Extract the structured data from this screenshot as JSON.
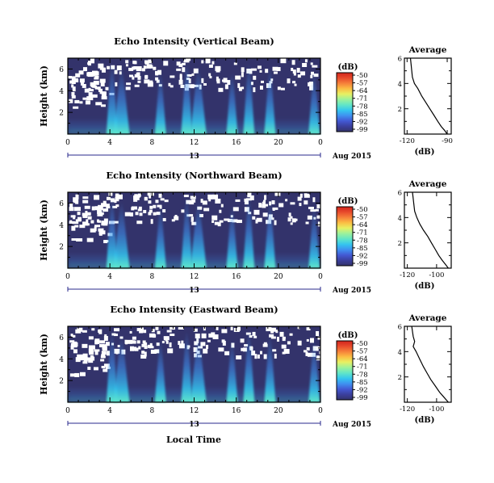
{
  "colors": {
    "background_fill": "#33336b",
    "missing": "#ffffff",
    "colormap": [
      "#33336b",
      "#3b3f9c",
      "#4359d3",
      "#3f8ff0",
      "#34c5ef",
      "#5fe5c9",
      "#9ff29a",
      "#e8f062",
      "#fbbd43",
      "#f6803a",
      "#e84a2c",
      "#d1241c"
    ]
  },
  "shared": {
    "ylabel": "Height (km)",
    "day_label": "13",
    "date_label": "Aug 2015",
    "xlabel": "Local Time",
    "xticks": [
      "0",
      "4",
      "8",
      "12",
      "16",
      "20",
      "0"
    ],
    "yticks": [
      "6",
      "4",
      "2"
    ],
    "colorbar_unit": "(dB)",
    "colorbar_ticks": [
      "-50",
      "-57",
      "-64",
      "-71",
      "-78",
      "-85",
      "-92",
      "-99"
    ],
    "avg_title": "Average",
    "avg_xlabel": "(dB)",
    "avg_yticks": [
      "6",
      "4",
      "2"
    ]
  },
  "chart_data": [
    {
      "type": "heatmap",
      "title": "Echo Intensity (Vertical Beam)",
      "xlabel": "Local Time",
      "ylabel": "Height (km)",
      "xlim": [
        0,
        24
      ],
      "ylim": [
        0,
        7
      ],
      "zlim": [
        -99,
        -50
      ],
      "colorbar_ticks": [
        -50,
        -57,
        -64,
        -71,
        -78,
        -85,
        -92,
        -99
      ],
      "plume_hours": [
        4.2,
        5.1,
        8.8,
        11.3,
        12.4,
        15.6,
        17.2,
        19.2,
        23.4
      ]
    },
    {
      "type": "heatmap",
      "title": "Echo Intensity (Northward Beam)",
      "xlabel": "Local Time",
      "ylabel": "Height (km)",
      "xlim": [
        0,
        24
      ],
      "ylim": [
        0,
        7
      ],
      "zlim": [
        -99,
        -50
      ],
      "colorbar_ticks": [
        -50,
        -57,
        -64,
        -71,
        -78,
        -85,
        -92,
        -99
      ],
      "plume_hours": [
        4.2,
        5.1,
        8.8,
        11.3,
        12.4,
        15.6,
        17.2,
        19.2,
        23.4
      ]
    },
    {
      "type": "heatmap",
      "title": "Echo Intensity (Eastward Beam)",
      "xlabel": "Local Time",
      "ylabel": "Height (km)",
      "xlim": [
        0,
        24
      ],
      "ylim": [
        0,
        7
      ],
      "zlim": [
        -99,
        -50
      ],
      "colorbar_ticks": [
        -50,
        -57,
        -64,
        -71,
        -78,
        -85,
        -92,
        -99
      ],
      "plume_hours": [
        4.2,
        5.1,
        8.8,
        11.3,
        12.4,
        15.6,
        17.2,
        19.2,
        23.4
      ]
    },
    {
      "type": "line",
      "title": "Average",
      "xlabel": "(dB)",
      "xlim": [
        -122,
        -87
      ],
      "ylim": [
        0,
        6
      ],
      "xticks": [
        -120,
        -90
      ],
      "x": [
        -117.5,
        -117,
        -116.5,
        -116,
        -114.5,
        -112,
        -109,
        -106,
        -103,
        -100,
        -97,
        -94.5,
        -92,
        -90
      ],
      "y": [
        6.0,
        5.5,
        5.0,
        4.5,
        4.0,
        3.6,
        3.0,
        2.5,
        2.0,
        1.5,
        1.0,
        0.6,
        0.3,
        0.0
      ]
    },
    {
      "type": "line",
      "title": "Average",
      "xlabel": "(dB)",
      "xlim": [
        -122,
        -90
      ],
      "ylim": [
        0,
        6
      ],
      "xticks": [
        -120,
        -100
      ],
      "x": [
        -116.5,
        -116,
        -115.5,
        -115,
        -113.5,
        -111.5,
        -109,
        -106,
        -103.5,
        -101,
        -98.5,
        -96,
        -94,
        -92
      ],
      "y": [
        6.0,
        5.5,
        5.0,
        4.5,
        4.0,
        3.5,
        3.0,
        2.5,
        2.0,
        1.5,
        1.0,
        0.6,
        0.3,
        0.0
      ]
    },
    {
      "type": "line",
      "title": "Average",
      "xlabel": "(dB)",
      "xlim": [
        -122,
        -90
      ],
      "ylim": [
        0,
        6
      ],
      "xticks": [
        -120,
        -100
      ],
      "x": [
        -117,
        -116.5,
        -116,
        -115,
        -116,
        -114,
        -111.5,
        -109,
        -106.5,
        -104,
        -101,
        -98,
        -95,
        -92
      ],
      "y": [
        6.0,
        5.6,
        5.2,
        4.8,
        4.4,
        4.0,
        3.4,
        2.8,
        2.3,
        1.8,
        1.3,
        0.8,
        0.4,
        0.0
      ]
    }
  ]
}
